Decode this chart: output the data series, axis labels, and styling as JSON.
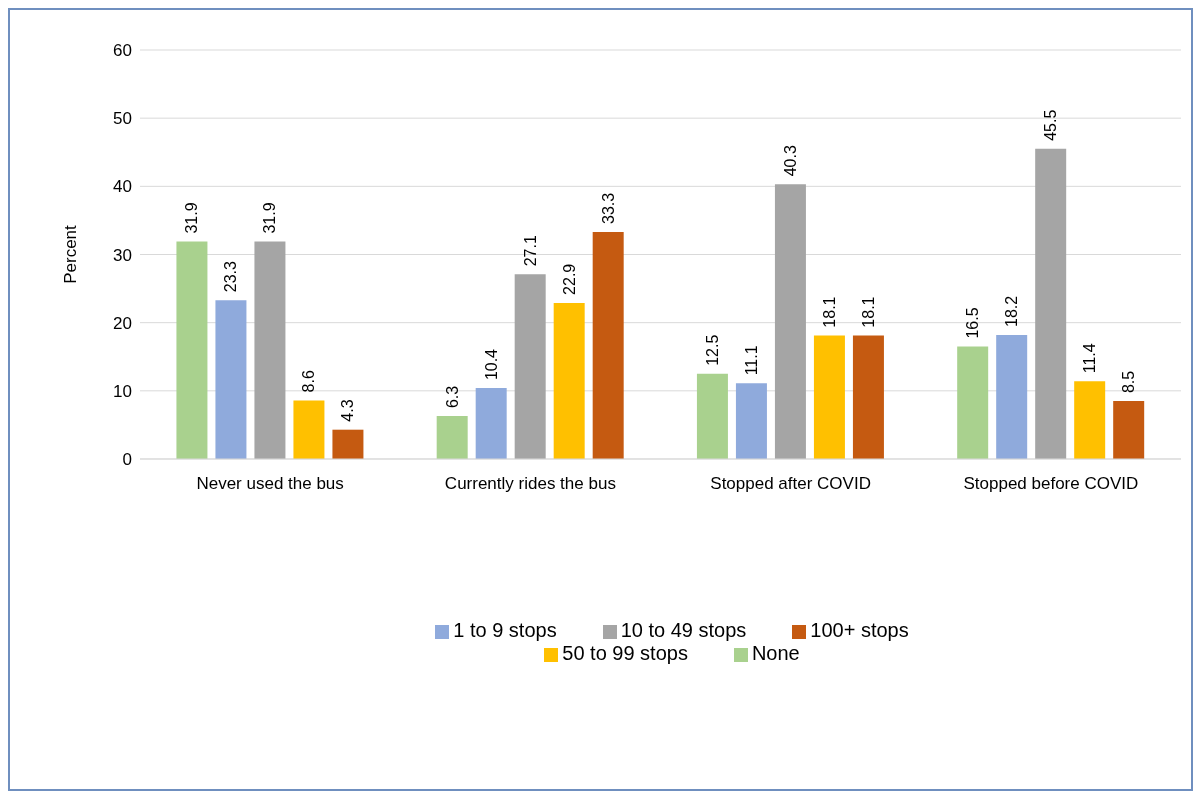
{
  "chart_data": {
    "type": "bar",
    "ylabel": "Percent",
    "categories": [
      "Never used the bus",
      "Currently rides the bus",
      "Stopped after COVID",
      "Stopped before COVID"
    ],
    "series": [
      {
        "name": "None",
        "color": "#a9d18e",
        "values": [
          31.9,
          6.3,
          12.5,
          16.5
        ]
      },
      {
        "name": "1 to 9 stops",
        "color": "#8faadc",
        "values": [
          23.3,
          10.4,
          11.1,
          18.2
        ]
      },
      {
        "name": "10 to 49 stops",
        "color": "#a5a5a5",
        "values": [
          31.9,
          27.1,
          40.3,
          45.5
        ]
      },
      {
        "name": "50 to 99 stops",
        "color": "#ffc000",
        "values": [
          8.6,
          22.9,
          18.1,
          11.4
        ]
      },
      {
        "name": "100+ stops",
        "color": "#c55a11",
        "values": [
          4.3,
          33.3,
          18.1,
          8.5
        ]
      }
    ],
    "ylim": [
      0,
      60
    ],
    "yticks": [
      0,
      10,
      20,
      30,
      40,
      50,
      60
    ],
    "grid": "y",
    "legend": "bottom",
    "data_labels": true
  }
}
